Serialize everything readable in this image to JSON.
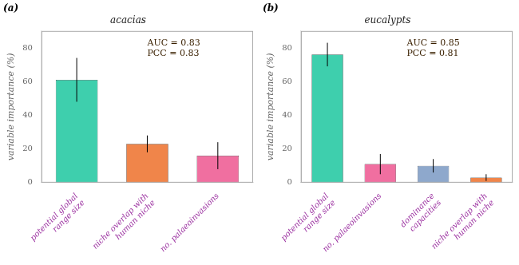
{
  "chart_data": [
    {
      "type": "bar",
      "panel_label": "(a)",
      "title": "acacias",
      "y_label": "variable importance (%)",
      "categories": [
        "potential global\nrange size",
        "niche overlap with\nhuman niche",
        "no. palaeoinvasions"
      ],
      "values": [
        61,
        23,
        16
      ],
      "err_lower": [
        13,
        5,
        8
      ],
      "err_upper": [
        13,
        5,
        8
      ],
      "colors": [
        "#3ecfad",
        "#f0854a",
        "#f06fa0"
      ],
      "annotations": [
        "AUC = 0.83",
        "PCC = 0.83"
      ],
      "ylim": [
        0,
        90
      ],
      "yticks": [
        0,
        20,
        40,
        60,
        80
      ],
      "grid": false
    },
    {
      "type": "bar",
      "panel_label": "(b)",
      "title": "eucalypts",
      "y_label": "variable importance (%)",
      "categories": [
        "potential global\nrange size",
        "no. palaeoinvasions",
        "dominance\ncapacities",
        "niche overlap with\nhuman niche"
      ],
      "values": [
        76,
        11,
        10,
        3
      ],
      "err_lower": [
        7,
        6,
        4,
        2
      ],
      "err_upper": [
        7,
        6,
        4,
        2
      ],
      "colors": [
        "#3ecfad",
        "#f06fa0",
        "#8ea8cc",
        "#f0854a"
      ],
      "annotations": [
        "AUC = 0.85",
        "PCC = 0.81"
      ],
      "ylim": [
        0,
        90
      ],
      "yticks": [
        0,
        20,
        40,
        60,
        80
      ],
      "grid": false
    }
  ]
}
